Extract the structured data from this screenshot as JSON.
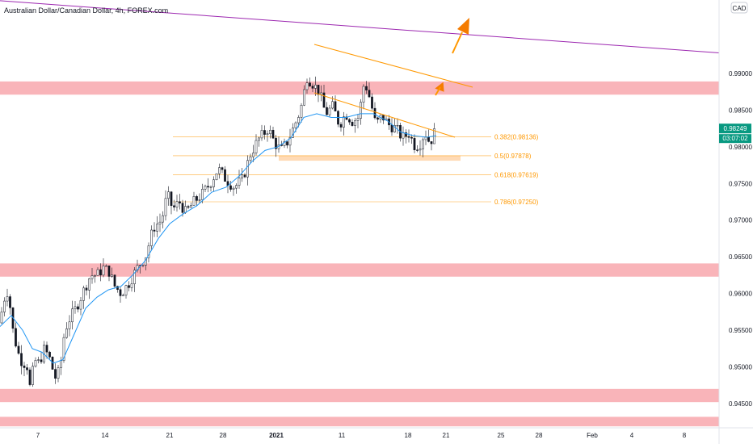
{
  "header": {
    "symbol_title": "Australian Dollar/Canadian Dollar, 4h, FOREX.com",
    "currency_badge": "CAD"
  },
  "price_axis": {
    "labels": [
      "0.99000",
      "0.98500",
      "0.98000",
      "0.97500",
      "0.97000",
      "0.96500",
      "0.96000",
      "0.95500",
      "0.95000",
      "0.94500"
    ],
    "current_price": "0.98249",
    "countdown": "03:07:02"
  },
  "time_axis": {
    "labels": [
      "7",
      "14",
      "21",
      "28",
      "2021",
      "11",
      "18",
      "21",
      "25",
      "28",
      "Feb",
      "4",
      "8"
    ]
  },
  "fib_levels": [
    {
      "label": "0.382(0.98136)",
      "value": 0.98136
    },
    {
      "label": "0.5(0.97878)",
      "value": 0.97878
    },
    {
      "label": "0.618(0.97619)",
      "value": 0.97619
    },
    {
      "label": "0.786(0.97250)",
      "value": 0.9725
    }
  ],
  "colors": {
    "up": "#26a69a",
    "down": "#ef5350",
    "candle": "#131722",
    "ema": "#2196f3",
    "zone": "#f7a1a7",
    "channel": "#ff9800",
    "trendline": "#9c27b0",
    "price_badge": "#089981"
  },
  "chart_data": {
    "type": "candlestick",
    "title": "Australian Dollar/Canadian Dollar, 4h, FOREX.com",
    "ylim": [
      0.9417,
      1.0
    ],
    "zones": [
      {
        "from": 0.9871,
        "to": 0.9889
      },
      {
        "from": 0.9623,
        "to": 0.9641
      },
      {
        "from": 0.9452,
        "to": 0.947
      },
      {
        "from": 0.9419,
        "to": 0.9432
      }
    ],
    "support_zone": {
      "from": 0.9781,
      "to": 0.9788
    },
    "trendline": {
      "start": 0.9999,
      "end": 0.9928
    },
    "path_points": [
      [
        0,
        0.956
      ],
      [
        4,
        0.959
      ],
      [
        10,
        0.9605
      ],
      [
        16,
        0.955
      ],
      [
        22,
        0.952
      ],
      [
        28,
        0.9505
      ],
      [
        33,
        0.9505
      ],
      [
        38,
        0.9465
      ],
      [
        42,
        0.951
      ],
      [
        48,
        0.9505
      ],
      [
        55,
        0.9525
      ],
      [
        62,
        0.951
      ],
      [
        68,
        0.9485
      ],
      [
        74,
        0.9495
      ],
      [
        80,
        0.955
      ],
      [
        86,
        0.9565
      ],
      [
        94,
        0.958
      ],
      [
        100,
        0.9595
      ],
      [
        106,
        0.961
      ],
      [
        112,
        0.9625
      ],
      [
        120,
        0.9625
      ],
      [
        128,
        0.9635
      ],
      [
        135,
        0.963
      ],
      [
        142,
        0.961
      ],
      [
        150,
        0.96
      ],
      [
        160,
        0.9615
      ],
      [
        170,
        0.9635
      ],
      [
        180,
        0.965
      ],
      [
        190,
        0.969
      ],
      [
        200,
        0.97
      ],
      [
        207,
        0.9735
      ],
      [
        214,
        0.9715
      ],
      [
        222,
        0.9725
      ],
      [
        230,
        0.971
      ],
      [
        240,
        0.9725
      ],
      [
        250,
        0.9735
      ],
      [
        260,
        0.975
      ],
      [
        270,
        0.977
      ],
      [
        280,
        0.9755
      ],
      [
        290,
        0.9745
      ],
      [
        300,
        0.9755
      ],
      [
        310,
        0.979
      ],
      [
        320,
        0.981
      ],
      [
        332,
        0.9825
      ],
      [
        340,
        0.9805
      ],
      [
        348,
        0.9795
      ],
      [
        355,
        0.9805
      ],
      [
        363,
        0.9825
      ],
      [
        372,
        0.985
      ],
      [
        380,
        0.9895
      ],
      [
        388,
        0.9885
      ],
      [
        395,
        0.9875
      ],
      [
        403,
        0.9845
      ],
      [
        412,
        0.9855
      ],
      [
        420,
        0.983
      ],
      [
        428,
        0.9845
      ],
      [
        436,
        0.9835
      ],
      [
        444,
        0.984
      ],
      [
        451,
        0.989
      ],
      [
        458,
        0.9865
      ],
      [
        465,
        0.983
      ],
      [
        473,
        0.9842
      ],
      [
        481,
        0.983
      ],
      [
        490,
        0.9825
      ],
      [
        498,
        0.9812
      ],
      [
        506,
        0.9818
      ],
      [
        514,
        0.98
      ],
      [
        520,
        0.9805
      ],
      [
        526,
        0.982
      ],
      [
        532,
        0.9805
      ],
      [
        540,
        0.9825
      ]
    ],
    "ema_points": [
      [
        0,
        0.9555
      ],
      [
        14,
        0.957
      ],
      [
        28,
        0.955
      ],
      [
        40,
        0.9525
      ],
      [
        52,
        0.952
      ],
      [
        66,
        0.9505
      ],
      [
        78,
        0.951
      ],
      [
        92,
        0.9545
      ],
      [
        106,
        0.958
      ],
      [
        120,
        0.9595
      ],
      [
        134,
        0.9605
      ],
      [
        150,
        0.961
      ],
      [
        164,
        0.9625
      ],
      [
        180,
        0.9645
      ],
      [
        196,
        0.9675
      ],
      [
        210,
        0.9695
      ],
      [
        226,
        0.9708
      ],
      [
        244,
        0.972
      ],
      [
        262,
        0.9738
      ],
      [
        280,
        0.9745
      ],
      [
        296,
        0.976
      ],
      [
        312,
        0.978
      ],
      [
        328,
        0.9795
      ],
      [
        344,
        0.98
      ],
      [
        360,
        0.9812
      ],
      [
        376,
        0.984
      ],
      [
        392,
        0.9845
      ],
      [
        410,
        0.984
      ],
      [
        428,
        0.984
      ],
      [
        446,
        0.9845
      ],
      [
        462,
        0.9845
      ],
      [
        480,
        0.9835
      ],
      [
        496,
        0.982
      ],
      [
        512,
        0.9815
      ],
      [
        528,
        0.9813
      ],
      [
        540,
        0.9815
      ]
    ]
  }
}
